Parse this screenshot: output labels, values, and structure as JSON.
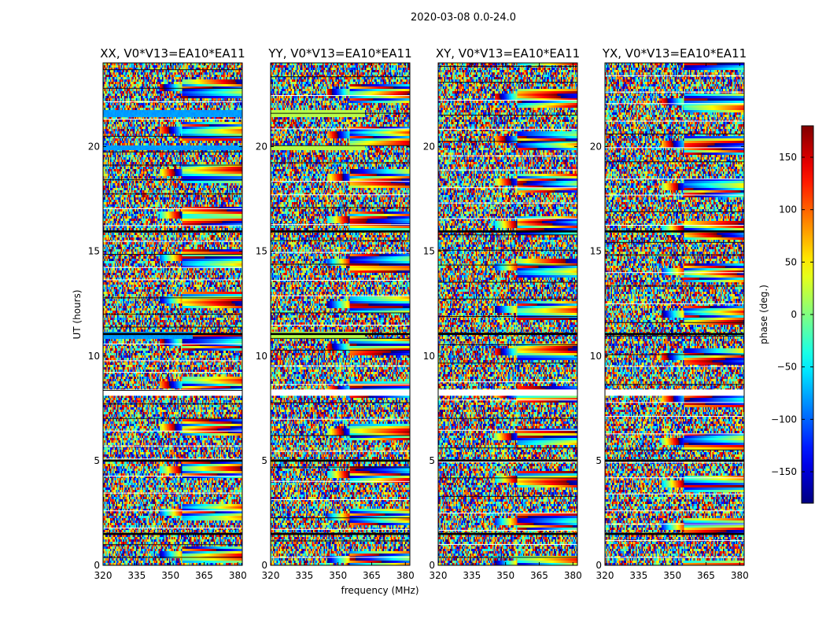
{
  "chart_data": {
    "type": "heatmap",
    "title": "2020-03-08 0.0-24.0",
    "xlabel": "frequency (MHz)",
    "ylabel": "UT (hours)",
    "xlim": [
      320,
      382
    ],
    "ylim": [
      0,
      24
    ],
    "xticks": [
      320,
      335,
      350,
      365,
      380
    ],
    "yticks": [
      0,
      5,
      10,
      15,
      20
    ],
    "panels": [
      {
        "title": "XX, V0*V13=EA10*EA11",
        "flat_bands": [
          {
            "t0": 21.4,
            "t1": 21.7,
            "value": -80,
            "f_end": 382
          },
          {
            "t0": 19.8,
            "t1": 20.0,
            "value": -80,
            "f_end": 382
          },
          {
            "t0": 10.8,
            "t1": 11.1,
            "value": -80,
            "f_end": 360
          }
        ]
      },
      {
        "title": "YY, V0*V13=EA10*EA11",
        "flat_bands": [
          {
            "t0": 21.4,
            "t1": 21.7,
            "value": 20,
            "f_end": 362
          },
          {
            "t0": 19.8,
            "t1": 20.0,
            "value": 20,
            "f_end": 362
          },
          {
            "t0": 10.8,
            "t1": 11.1,
            "value": 20,
            "f_end": 362
          }
        ]
      },
      {
        "title": "XY, V0*V13=EA10*EA11",
        "flat_bands": []
      },
      {
        "title": "YX, V0*V13=EA10*EA11",
        "flat_bands": []
      }
    ],
    "flagged_time_ranges": [
      [
        8.1,
        8.4
      ],
      [
        1.45,
        1.55
      ],
      [
        11.0,
        11.1
      ],
      [
        4.95,
        5.05
      ],
      [
        15.9,
        16.0
      ]
    ],
    "colorbar": {
      "label": "phase (deg.)",
      "range": [
        -180,
        180
      ],
      "ticks": [
        150,
        100,
        50,
        0,
        -50,
        -100,
        -150
      ],
      "tick_labels": [
        "150",
        "100",
        "50",
        "0",
        "−50",
        "−100",
        "−150"
      ],
      "colormap": "jet"
    }
  }
}
